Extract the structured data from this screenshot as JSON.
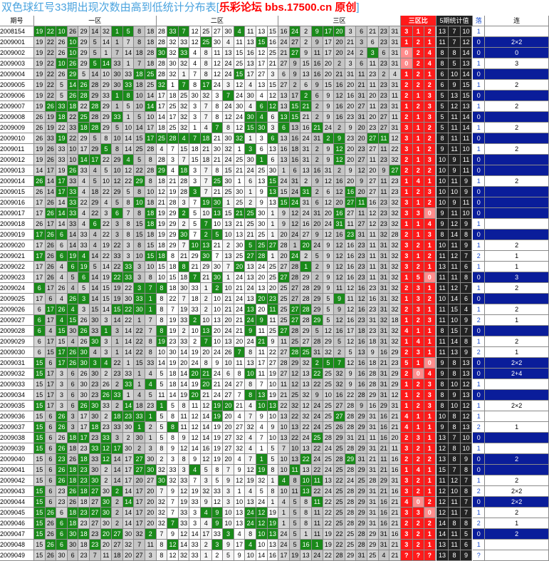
{
  "banner": {
    "title": "双色球红号33期出现次数由高到低统计分布表",
    "bracket_open": "[",
    "brand": "乐彩论坛 bbs.17500.cn 原创",
    "bracket_close": "]"
  },
  "headers": {
    "period": "期号",
    "zone1": "一区",
    "zone2": "二区",
    "zone3": "三区",
    "ratio": "三区比",
    "stats5": "5期统计值",
    "fall": "落",
    "streak": "连"
  },
  "colors": {
    "grey": "#c8c8c8",
    "white": "#ffffff",
    "green": "#1a8a1a",
    "blue_hl": "#a9cff0",
    "red_col": "#ff1a1a",
    "dark": "#222222",
    "navy": "#0a1d9a"
  },
  "rows": [
    {
      "p": "2008154",
      "n": "19 22 10 26 29 14 32 1 5 8 18 28 33 7 12 25 27 30 4 11 13 15 16 24 2 9 17 20 3 6 21 23 31",
      "g": [
        1,
        2,
        3,
        8,
        9,
        13,
        14,
        19,
        24,
        26,
        27,
        28
      ],
      "r": [
        "3",
        "1",
        "2"
      ],
      "s": [
        "13",
        "7",
        "10"
      ],
      "f": "1",
      "l": ""
    },
    {
      "p": "2009001",
      "n": "19 22 26 10 29 5 14 1 7 8 18 28 32 33 12 25 30 4 11 13 15 16 24 27 2 9 17 20 21 3 6 23 31",
      "g": [
        4,
        16,
        21
      ],
      "r": [
        "1",
        "2",
        "1"
      ],
      "s": [
        "11",
        "7",
        "12"
      ],
      "f": "0",
      "l": "2×2"
    },
    {
      "p": "2009002",
      "n": "19 22 26 10 29 5 1 7 14 18 28 30 32 33 4 8 11 13 15 16 12 25 21 27 9 11 17 20 24 2 3 6 31",
      "g": [
        4,
        12,
        14,
        24,
        31
      ],
      "r": [
        "0",
        "2",
        "4"
      ],
      "s": [
        "8",
        "8",
        "14"
      ],
      "f": "0",
      "l": "0"
    },
    {
      "p": "2009003",
      "n": "19 22 10 26 29 5 14 33 1 7 18 28 30 32 4 8 12 24 25 13 17 21 27 9 15 16 20 2 3 6 11 23 31",
      "g": [
        3,
        4,
        6,
        7
      ],
      "r": [
        "0",
        "2",
        "4"
      ],
      "s": [
        "8",
        "5",
        "13"
      ],
      "f": "1",
      "l": "3"
    },
    {
      "p": "2009004",
      "n": "19 22 26 29 5 14 10 30 33 18 25 28 32 1 7 8 12 24 15 17 27 3 6 9 13 16 20 21 31 11 23 2 4",
      "g": [
        4,
        10,
        11,
        19
      ],
      "r": [
        "1",
        "2",
        "1"
      ],
      "s": [
        "6",
        "10",
        "14"
      ],
      "f": "0",
      "l": ""
    },
    {
      "p": "2009005",
      "n": "19 22 5 14 26 28 29 30 33 18 25 32 1 7 8 17 24 3 12 4 13 15 27 2 6 9 15 16 20 21 11 23 31",
      "g": [
        4,
        5,
        9,
        12,
        14,
        16
      ],
      "r": [
        "2",
        "2",
        "2"
      ],
      "s": [
        "6",
        "9",
        "15"
      ],
      "f": "1",
      "l": "2"
    },
    {
      "p": "2009006",
      "n": "19 22 5 26 28 29 33 1 8 10 14 17 18 25 30 32 3 7 24 30 4 12 13 17 2 6 9 12 16 31 20 23 11",
      "g": [
        4,
        5,
        8,
        9,
        18,
        25
      ],
      "r": [
        "2",
        "1",
        "3"
      ],
      "s": [
        "5",
        "13",
        "15"
      ],
      "f": "0",
      "l": ""
    },
    {
      "p": "2009007",
      "n": "19 26 33 18 22 28 29 1 5 10 14 17 25 32 3 7 8 24 30 4 6 12 13 15 21 2 9 16 20 27 11 23 31",
      "g": [
        2,
        3,
        4,
        6,
        11,
        21,
        22,
        24,
        25
      ],
      "r": [
        "1",
        "2",
        "3"
      ],
      "s": [
        "5",
        "12",
        "13"
      ],
      "f": "1",
      "l": "2"
    },
    {
      "p": "2009008",
      "n": "26 19 18 22 25 28 29 33 1 5 10 14 17 32 3 7 8 12 24 30 4 6 13 15 21 2 9 16 23 31 20 27 11",
      "g": [
        3,
        5,
        8,
        20,
        21,
        23,
        24
      ],
      "r": [
        "2",
        "1",
        "3"
      ],
      "s": [
        "5",
        "11",
        "14"
      ],
      "f": "0",
      "l": ""
    },
    {
      "p": "2009009",
      "n": "26 19 22 33 18 28 29 5 10 14 17 18 25 32 1 4 7 8 12 15 30 3 6 13 16 21 24 2 9 20 23 27 31",
      "g": [
        5,
        6,
        17,
        20,
        21,
        23,
        26
      ],
      "r": [
        "3",
        "1",
        "2"
      ],
      "s": [
        "5",
        "11",
        "14"
      ],
      "f": "1",
      "l": "2"
    },
    {
      "p": "2009010",
      "n": "26 33 19 22 29 5 8 10 14 15 17 25 28 4 7 18 21 30 32 1 3 6 13 16 24 31 2 9 23 20 27 11 12",
      "g": [
        3,
        11,
        12,
        13,
        14,
        15,
        16,
        19,
        22,
        27,
        28,
        31,
        32
      ],
      "r": [
        "3",
        "1",
        "2"
      ],
      "s": [
        "8",
        "11",
        "11"
      ],
      "f": "0",
      "l": ""
    },
    {
      "p": "2009011",
      "n": "19 26 33 10 17 29 5 8 14 25 28 4 7 15 18 21 30 32 1 3 6 13 16 18 31 2 9 12 20 23 27 11 22",
      "g": [
        7,
        20,
        28
      ],
      "r": [
        "3",
        "1",
        "2"
      ],
      "s": [
        "9",
        "11",
        "10"
      ],
      "f": "1",
      "l": "2"
    },
    {
      "p": "2009012",
      "n": "19 26 33 10 14 17 22 29 4 5 8 28 3 7 15 18 21 24 25 30 1 6 13 16 31 2 9 12 20 27 11 23 32",
      "g": [
        5,
        6,
        9,
        21,
        28
      ],
      "r": [
        "2",
        "1",
        "3"
      ],
      "s": [
        "10",
        "9",
        "11"
      ],
      "f": "0",
      "l": ""
    },
    {
      "p": "2009013",
      "n": "14 17 19 26 33 4 5 10 12 22 28 29 4 18 3 7 8 15 21 24 25 30 1 6 13 16 31 2 9 12 20 9 27",
      "g": [
        4,
        12,
        14,
        33
      ],
      "r": [
        "2",
        "2",
        "2"
      ],
      "s": [
        "10",
        "9",
        "11"
      ],
      "f": "0",
      "l": ""
    },
    {
      "p": "2009014",
      "n": "26 14 17 33 4 5 10 12 22 29 8 18 21 28 3 7 25 30 1 6 13 15 24 31 2 9 12 16 20 9 27 11 23",
      "g": [
        1,
        3,
        10,
        17,
        22
      ],
      "r": [
        "1",
        "4",
        "1"
      ],
      "s": [
        "10",
        "11",
        "9"
      ],
      "f": "1",
      "l": "2"
    },
    {
      "p": "2009015",
      "n": "26 14 17 33 4 18 22 29 5 8 10 12 19 28 3 7 21 25 30 1 9 13 15 24 31 2 6 12 16 20 27 11 23",
      "g": [
        3,
        4,
        15,
        22,
        25,
        29
      ],
      "r": [
        "1",
        "2",
        "3"
      ],
      "s": [
        "10",
        "10",
        "9"
      ],
      "f": "0",
      "l": ""
    },
    {
      "p": "2009016",
      "n": "17 26 14 33 22 29 4 5 8 10 18 21 28 3 7 19 30 1 25 2 9 13 15 24 31 6 12 20 27 11 16 23 32",
      "g": [
        4,
        10,
        16,
        17,
        23,
        24,
        29,
        30
      ],
      "r": [
        "3",
        "1",
        "2"
      ],
      "s": [
        "10",
        "9",
        "11"
      ],
      "f": "0",
      "l": ""
    },
    {
      "p": "2009017",
      "n": "17 26 14 33 4 22 3 6 7 8 18 19 29 2 5 10 13 15 21 25 30 1 9 12 24 31 20 16 27 11 12 23 32",
      "g": [
        2,
        3,
        4,
        8,
        11,
        14,
        17,
        19,
        20,
        28
      ],
      "r": [
        "3",
        "3",
        "0"
      ],
      "s": [
        "9",
        "11",
        "10"
      ],
      "f": "0",
      "l": ""
    },
    {
      "p": "2009018",
      "n": "26 17 14 33 4 6 22 3 8 15 18 19 29 2 5 7 10 13 21 25 30 1 9 12 16 20 24 31 11 27 12 23 32",
      "g": [
        6,
        11,
        16,
        28
      ],
      "r": [
        "1",
        "1",
        "4"
      ],
      "s": [
        "9",
        "12",
        "9"
      ],
      "f": "1",
      "l": ""
    },
    {
      "p": "2009019",
      "n": "17 26 6 14 33 4 22 3 8 15 18 19 29 30 7 2 5 10 13 21 25 1 20 24 27 9 12 16 23 31 11 32 28",
      "g": [
        1,
        2,
        3,
        14,
        16,
        17,
        29
      ],
      "r": [
        "2",
        "1",
        "3"
      ],
      "s": [
        "8",
        "14",
        "8"
      ],
      "f": "0",
      "l": ""
    },
    {
      "p": "2009020",
      "n": "17 26 6 14 33 4 19 22 3 8 15 18 29 7 10 13 21 2 30 5 25 27 28 1 20 24 9 12 16 23 11 31 32",
      "g": [
        15,
        16,
        20,
        21,
        22,
        25
      ],
      "r": [
        "3",
        "2",
        "1"
      ],
      "s": [
        "10",
        "11",
        "9"
      ],
      "f": "1",
      "l": "2"
    },
    {
      "p": "2009021",
      "n": "17 26 6 19 4 14 22 33 3 10 15 18 8 21 29 30 7 13 25 27 28 1 20 24 2 5 9 12 16 23 11 31 32",
      "g": [
        1,
        3,
        4,
        5,
        11,
        12,
        16,
        20,
        21,
        24
      ],
      "r": [
        "3",
        "1",
        "2"
      ],
      "s": [
        "11",
        "12",
        "7"
      ],
      "f": "2",
      "l": "1"
    },
    {
      "p": "2009022",
      "n": "17 26 4 6 19 5 14 22 33 3 10 15 18 8 21 29 30 7 20 13 24 25 27 28 1 2 9 12 16 23 11 31 32",
      "g": [
        4,
        5,
        9,
        14,
        19,
        25
      ],
      "r": [
        "3",
        "2",
        "1"
      ],
      "s": [
        "13",
        "11",
        "6"
      ],
      "f": "1",
      "l": "1"
    },
    {
      "p": "2009023",
      "n": "17 26 4 5 6 14 19 22 33 3 8 10 15 18 7 21 30 1 24 13 20 25 27 28 29 2 9 12 16 23 11 31 32",
      "g": [
        5,
        8,
        9,
        15,
        17,
        23
      ],
      "r": [
        "1",
        "5",
        "0"
      ],
      "s": [
        "11",
        "11",
        "8"
      ],
      "f": "0",
      "l": "3"
    },
    {
      "p": "2009024",
      "n": "6 17 26 4 5 14 15 19 22 3 7 8 18 30 33 1 2 10 21 24 13 20 25 27 28 29 9 11 12 16 23 31 32",
      "g": [
        1,
        10,
        11,
        12,
        17
      ],
      "r": [
        "2",
        "3",
        "1"
      ],
      "s": [
        "11",
        "12",
        "7"
      ],
      "f": "1",
      "l": "2"
    },
    {
      "p": "2009025",
      "n": "17 6 4 26 3 14 15 19 30 33 1 8 22 7 18 2 10 21 24 13 20 23 25 27 28 29 5 9 11 12 16 31 32",
      "g": [
        4,
        5,
        10,
        11,
        21,
        22,
        28
      ],
      "r": [
        "1",
        "3",
        "2"
      ],
      "s": [
        "10",
        "14",
        "6"
      ],
      "f": "0",
      "l": ""
    },
    {
      "p": "2009026",
      "n": "6 17 26 4 3 15 14 15 22 30 1 8 7 19 33 2 10 21 24 13 20 11 25 27 28 29 5 9 12 16 23 31 32",
      "g": [
        2,
        3,
        4,
        8,
        9,
        10,
        11,
        20,
        22,
        24,
        25
      ],
      "r": [
        "2",
        "3",
        "1"
      ],
      "s": [
        "11",
        "15",
        "4"
      ],
      "f": "1",
      "l": "2"
    },
    {
      "p": "2009027",
      "n": "6 17 4 15 26 30 3 14 22 1 7 8 19 33 2 10 13 20 21 24 9 11 25 27 28 29 5 12 16 23 31 32 18",
      "g": [
        1,
        3,
        4,
        15,
        20,
        21,
        24,
        26
      ],
      "r": [
        "1",
        "2",
        "3"
      ],
      "s": [
        "11",
        "10",
        "9"
      ],
      "f": "2",
      "l": "1"
    },
    {
      "p": "2009028",
      "n": "6 4 15 30 26 33 1 3 14 22 7 8 19 2 10 13 20 24 21 9 11 25 27 28 29 5 12 16 17 18 23 31 32",
      "g": [
        1,
        3,
        5,
        7,
        12,
        16,
        20,
        23
      ],
      "r": [
        "4",
        "1",
        "1"
      ],
      "s": [
        "8",
        "15",
        "7"
      ],
      "f": "0",
      "l": ""
    },
    {
      "p": "2009029",
      "n": "6 17 15 4 26 30 3 1 14 22 8 19 23 33 2 7 10 13 20 24 21 9 11 25 27 28 29 5 12 16 18 31 32",
      "g": [
        6,
        12,
        16,
        21
      ],
      "r": [
        "1",
        "4",
        "1"
      ],
      "s": [
        "11",
        "14",
        "8"
      ],
      "f": "1",
      "l": "2"
    },
    {
      "p": "2009030",
      "n": "6 15 17 26 30 4 3 1 14 22 8 10 30 14 19 20 24 26 7 8 11 22 27 28 25 31 32 2 5 13 9 16 29",
      "g": [
        3,
        4,
        5,
        19,
        24,
        25
      ],
      "r": [
        "2",
        "3",
        "1"
      ],
      "s": [
        "11",
        "13",
        "9"
      ],
      "f": "2",
      "l": "1"
    },
    {
      "p": "2009031",
      "n": "15 6 17 26 30 3 4 22 1 15 33 14 19 20 24 8 9 10 11 13 17 27 28 29 32 2 5 7 12 16 18 21 23",
      "g": [
        1,
        3,
        4,
        5,
        6,
        7,
        26,
        27,
        28
      ],
      "r": [
        "5",
        "1",
        "0"
      ],
      "s": [
        "9",
        "8",
        "13"
      ],
      "f": "0",
      "l": "2×2"
    },
    {
      "p": "2009032",
      "n": "15 17 3 6 26 30 2 23 33 1 4 5 18 14 20 21 24 6 8 10 11 19 27 12 13 22 25 32 9 16 28 31 29",
      "g": [
        1,
        15,
        16,
        20,
        26
      ],
      "r": [
        "2",
        "0",
        "4"
      ],
      "s": [
        "9",
        "8",
        "13"
      ],
      "f": "0",
      "l": "2+4"
    },
    {
      "p": "2009033",
      "n": "15 17 3 6 30 23 26 2 33 1 4 5 18 14 19 20 21 24 27 8 7 10 11 12 13 22 25 32 9 16 28 31 29",
      "g": [
        9,
        11,
        16
      ],
      "r": [
        "1",
        "2",
        "3"
      ],
      "s": [
        "8",
        "10",
        "12"
      ],
      "f": "1",
      "l": ""
    },
    {
      "p": "2009034",
      "n": "15 17 3 6 30 23 26 33 1 4 5 11 14 19 20 21 24 27 7 8 13 19 21 25 32 9 10 16 22 28 29 31 12",
      "g": [
        7,
        8,
        15,
        20,
        21
      ],
      "r": [
        "1",
        "2",
        "3"
      ],
      "s": [
        "8",
        "9",
        "13"
      ],
      "f": "0",
      "l": ""
    },
    {
      "p": "2009035",
      "n": "15 17 3 6 26 30 33 2 14 18 23 1 5 8 11 12 19 20 21 4 10 13 22 32 12 24 25 27 28 9 16 29 31",
      "g": [
        1,
        5,
        6,
        9,
        12,
        17,
        18,
        21,
        22
      ],
      "r": [
        "1",
        "2",
        "3"
      ],
      "s": [
        "8",
        "10",
        "12"
      ],
      "f": "1",
      "l": "2×2"
    },
    {
      "p": "2009036",
      "n": "15 6 26 3 17 30 2 18 23 33 1 5 8 11 12 14 19 20 4 7 9 10 13 22 32 24 25 27 28 29 31 16 21",
      "g": [
        3,
        8,
        9,
        10,
        11,
        17,
        28
      ],
      "r": [
        "4",
        "1",
        "1"
      ],
      "s": [
        "10",
        "8",
        "12"
      ],
      "f": "1",
      "l": ""
    },
    {
      "p": "2009037",
      "n": "15 6 26 3 17 18 23 33 30 1 2 5 8 11 12 14 19 20 27 32 4 9 10 13 22 24 25 26 28 29 31 16 21",
      "g": [
        1,
        3,
        6,
        10,
        13
      ],
      "r": [
        "4",
        "1",
        "1"
      ],
      "s": [
        "9",
        "8",
        "13"
      ],
      "f": "2",
      "l": "1"
    },
    {
      "p": "2009038",
      "n": "15 6 26 18 17 23 33 3 2 30 1 5 8 9 12 14 19 27 32 4 7 10 13 22 24 25 28 29 31 21 11 16 20",
      "g": [
        1,
        4,
        5,
        7,
        26
      ],
      "r": [
        "2",
        "3",
        "1"
      ],
      "s": [
        "13",
        "7",
        "10"
      ],
      "f": "0",
      "l": ""
    },
    {
      "p": "2009039",
      "n": "15 6 26 18 23 33 12 17 30 2 3 8 9 12 14 16 19 27 32 4 1 5 7 10 13 22 24 25 28 29 31 21 11",
      "g": [
        1,
        3,
        6,
        7,
        8
      ],
      "r": [
        "3",
        "2",
        "1"
      ],
      "s": [
        "12",
        "8",
        "10"
      ],
      "f": "1",
      "l": ""
    },
    {
      "p": "2009040",
      "n": "15 6 23 26 18 33 12 14 17 27 30 2 3 8 9 12 19 20 4 7 1 5 10 13 22 24 25 28 29 31 21 11 16",
      "g": [
        3,
        5,
        7,
        10,
        21,
        25,
        29
      ],
      "r": [
        "2",
        "2",
        "2"
      ],
      "s": [
        "13",
        "8",
        "9"
      ],
      "f": "0",
      "l": "2"
    },
    {
      "p": "2009041",
      "n": "15 6 26 18 23 30 2 14 17 27 30 32 33 3 4 5 8 7 9 12 19 8 10 11 13 22 24 25 28 29 31 21 16",
      "g": [
        3,
        4,
        5,
        10,
        11,
        15,
        21,
        24
      ],
      "r": [
        "1",
        "4",
        "1"
      ],
      "s": [
        "15",
        "7",
        "8"
      ],
      "f": "0",
      "l": ""
    },
    {
      "p": "2009042",
      "n": "15 6 26 18 23 30 2 14 17 20 27 30 32 33 7 3 5 9 12 19 32 1 4 8 10 11 13 22 24 25 28 29 31",
      "g": [
        3,
        4,
        5,
        6,
        12,
        23,
        25,
        26
      ],
      "r": [
        "3",
        "2",
        "1"
      ],
      "s": [
        "11",
        "12",
        "7"
      ],
      "f": "1",
      "l": "2"
    },
    {
      "p": "2009043",
      "n": "15 6 23 26 18 27 30 2 14 17 20 7 9 12 19 32 33 3 1 4 5 8 10 11 13 22 24 25 28 29 31 21 16",
      "g": [
        1,
        4,
        5,
        6,
        8,
        25
      ],
      "r": [
        "3",
        "2",
        "1"
      ],
      "s": [
        "12",
        "10",
        "8"
      ],
      "f": "2",
      "l": "2×2"
    },
    {
      "p": "2009044",
      "n": "15 6 23 26 18 27 30 2 14 17 20 32 7 19 33 9 12 3 10 13 24 1 4 5 8 11 22 25 28 29 31 16 21",
      "g": [
        1,
        7,
        9,
        26
      ],
      "r": [
        "4",
        "0",
        "2"
      ],
      "s": [
        "12",
        "11",
        "7"
      ],
      "f": "0",
      "l": "2×2"
    },
    {
      "p": "2009045",
      "n": "15 26 6 18 23 27 30 2 14 17 20 32 7 33 3 4 9 10 13 24 12 19 1 5 8 11 22 25 28 29 31 16 21",
      "g": [
        1,
        2,
        4,
        5,
        6,
        7,
        16,
        17,
        20,
        21
      ],
      "r": [
        "3",
        "3",
        "0"
      ],
      "s": [
        "12",
        "11",
        "7"
      ],
      "f": "1",
      "l": "2"
    },
    {
      "p": "2009046",
      "n": "15 26 6 18 23 27 30 2 14 17 20 32 7 33 3 4 9 10 13 24 12 19 1 5 8 11 22 25 28 29 31 16 21",
      "g": [
        1,
        3,
        4,
        13,
        17,
        20,
        21,
        22
      ],
      "r": [
        "2",
        "2",
        "2"
      ],
      "s": [
        "14",
        "8",
        "8"
      ],
      "f": "2",
      "l": "1"
    },
    {
      "p": "2009047",
      "n": "15 26 6 30 18 23 20 27 30 32 2 7 9 12 14 17 33 3 4 8 10 13 24 5 1 11 19 22 25 28 29 31 16",
      "g": [
        1,
        3,
        4,
        5,
        7,
        8,
        11,
        18,
        21,
        22
      ],
      "r": [
        "3",
        "2",
        "1"
      ],
      "s": [
        "14",
        "11",
        "5"
      ],
      "f": "0",
      "l": "2"
    },
    {
      "p": "2009048",
      "n": "15 26 6 30 18 23 20 27 32 7 11 8 12 14 33 2 3 9 17 4 10 13 24 5 16 1 19 22 25 28 29 31 21",
      "g": [
        2,
        3,
        6,
        13,
        17,
        20,
        25,
        26
      ],
      "r": [
        "3",
        "2",
        "1"
      ],
      "s": [
        "13",
        "11",
        "6"
      ],
      "f": "1",
      "l": ""
    },
    {
      "p": "2009049",
      "n": "15 26 30 6 23 7 11 18 20 27 3 8 12 32 33 1 2 5 9 10 14 16 17 19 13 24 22 28 29 31 25 4 21",
      "g": [],
      "r": [
        "?",
        "?",
        "?"
      ],
      "s": [
        "13",
        "8",
        "9"
      ],
      "f": "?",
      "l": ""
    }
  ]
}
